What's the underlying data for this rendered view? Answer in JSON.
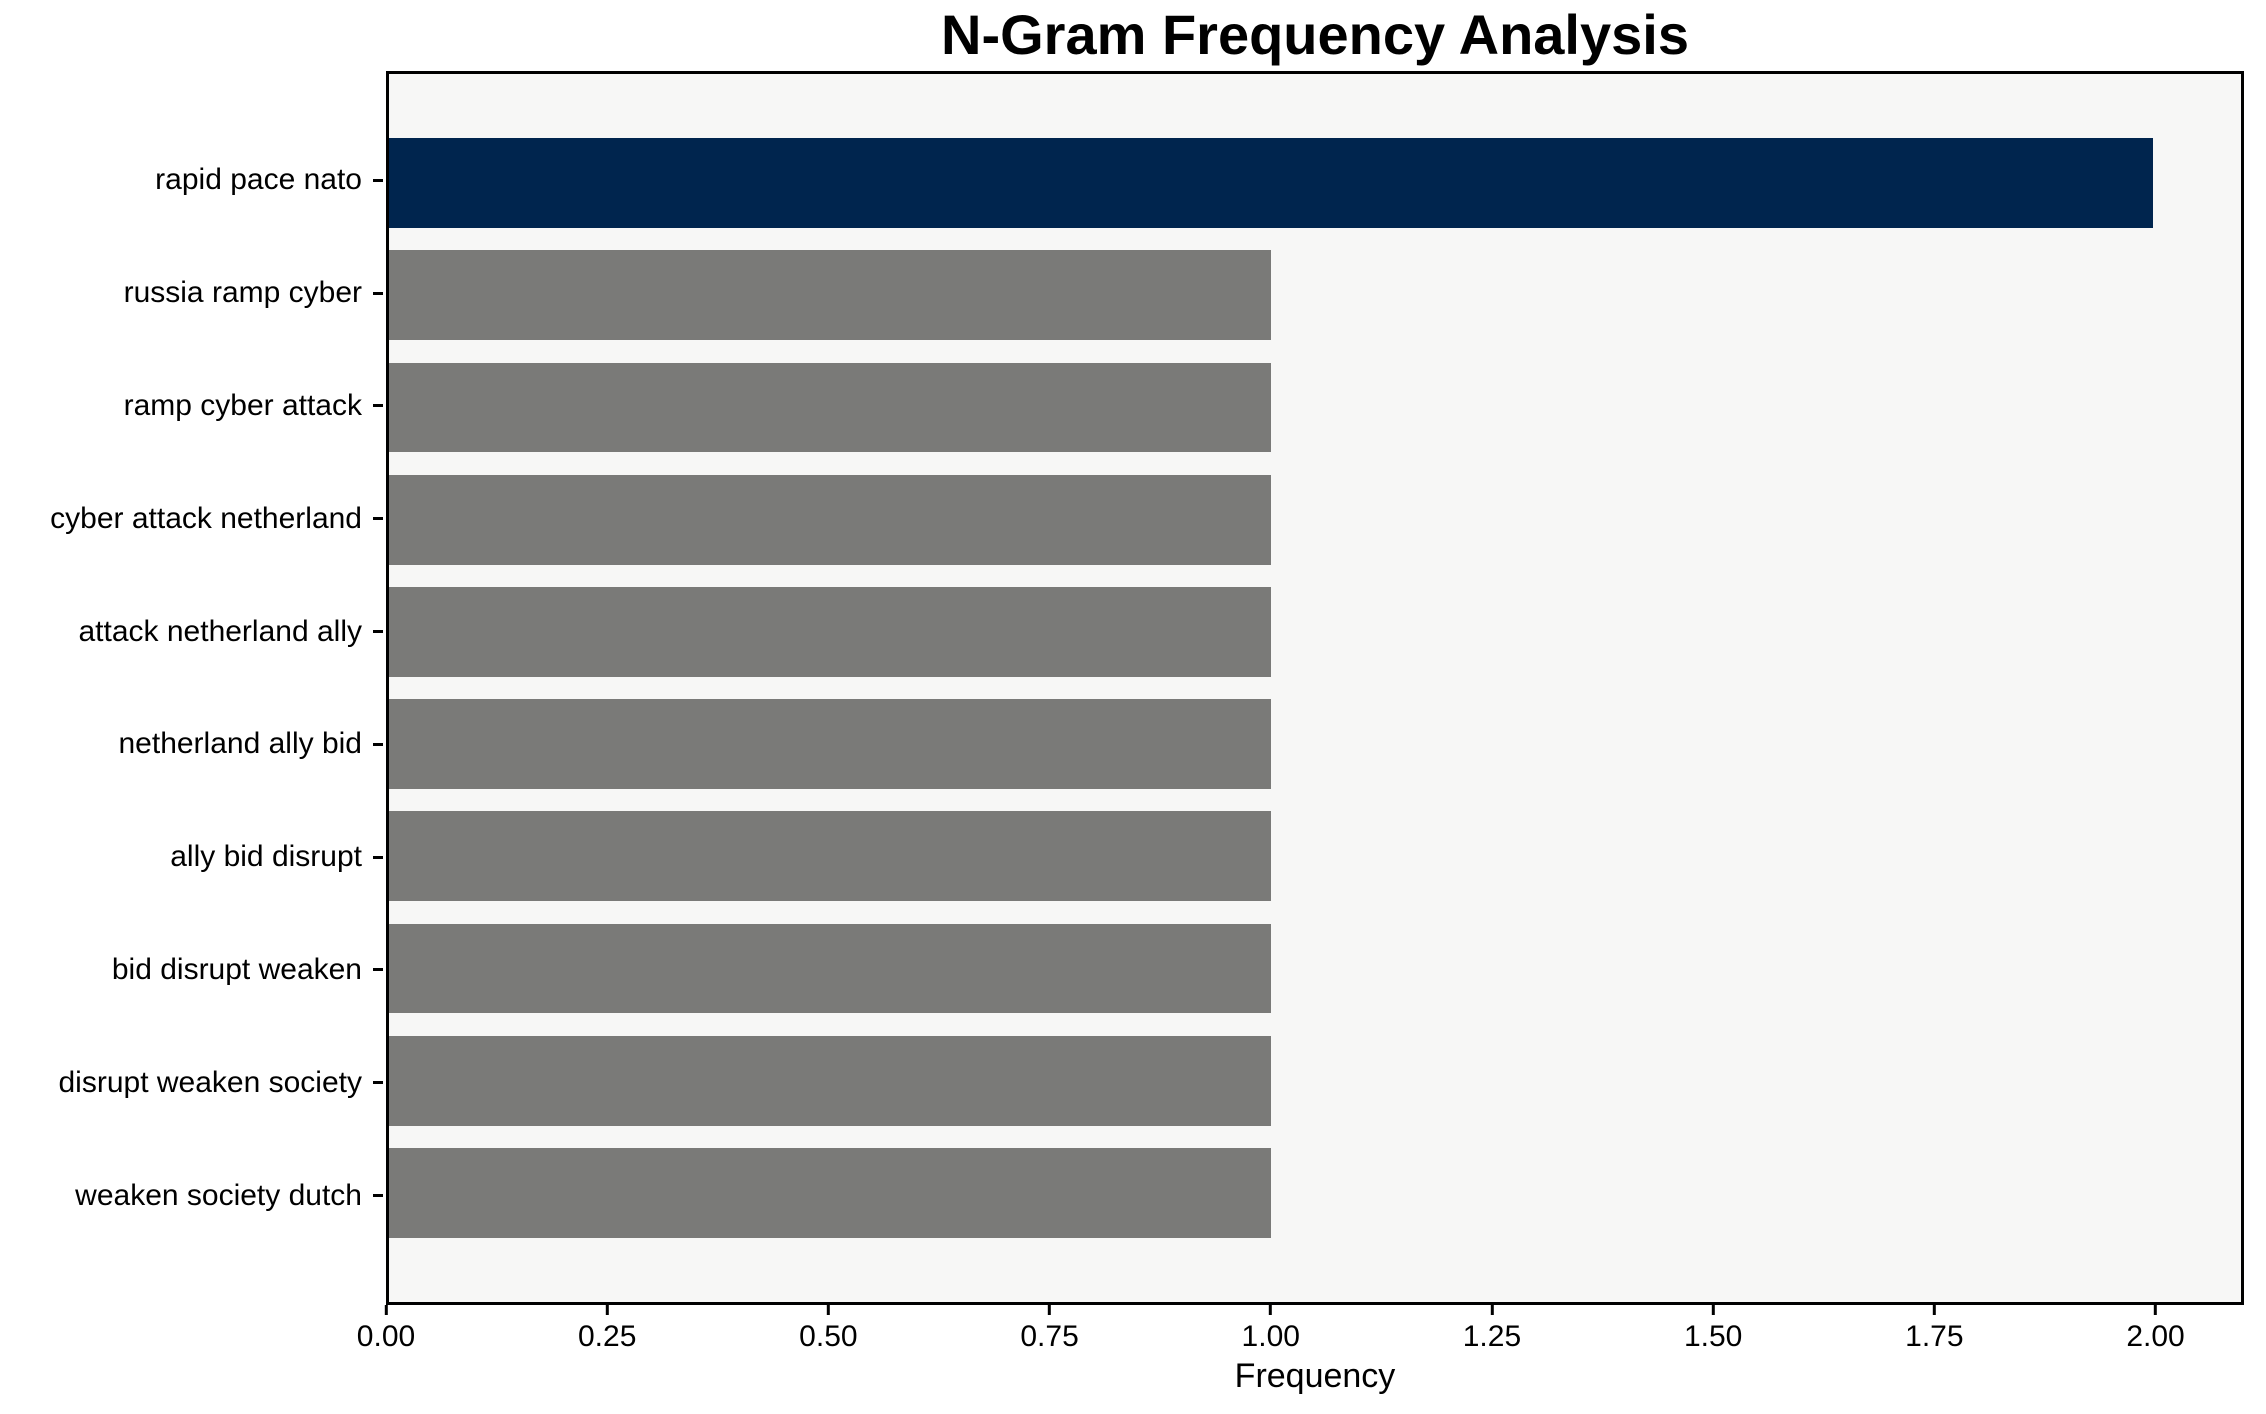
{
  "chart_data": {
    "type": "bar",
    "orientation": "horizontal",
    "title": "N-Gram Frequency Analysis",
    "xlabel": "Frequency",
    "ylabel": "",
    "categories": [
      "rapid pace nato",
      "russia ramp cyber",
      "ramp cyber attack",
      "cyber attack netherland",
      "attack netherland ally",
      "netherland ally bid",
      "ally bid disrupt",
      "bid disrupt weaken",
      "disrupt weaken society",
      "weaken society dutch"
    ],
    "values": [
      2,
      1,
      1,
      1,
      1,
      1,
      1,
      1,
      1,
      1
    ],
    "highlight_index": 0,
    "xlim": [
      0,
      2.1
    ],
    "x_ticks": [
      {
        "value": 0,
        "label": "0.00"
      },
      {
        "value": 0.25,
        "label": "0.25"
      },
      {
        "value": 0.5,
        "label": "0.50"
      },
      {
        "value": 0.75,
        "label": "0.75"
      },
      {
        "value": 1,
        "label": "1.00"
      },
      {
        "value": 1.25,
        "label": "1.25"
      },
      {
        "value": 1.5,
        "label": "1.50"
      },
      {
        "value": 1.75,
        "label": "1.75"
      },
      {
        "value": 2,
        "label": "2.00"
      }
    ],
    "grid": false,
    "legend": "none",
    "colors": {
      "bar_highlight": "#00254e",
      "bar_default": "#7a7a78",
      "plot_background": "#f7f7f6",
      "figure_background": "#ffffff",
      "axis": "#000000",
      "text": "#000000"
    }
  }
}
